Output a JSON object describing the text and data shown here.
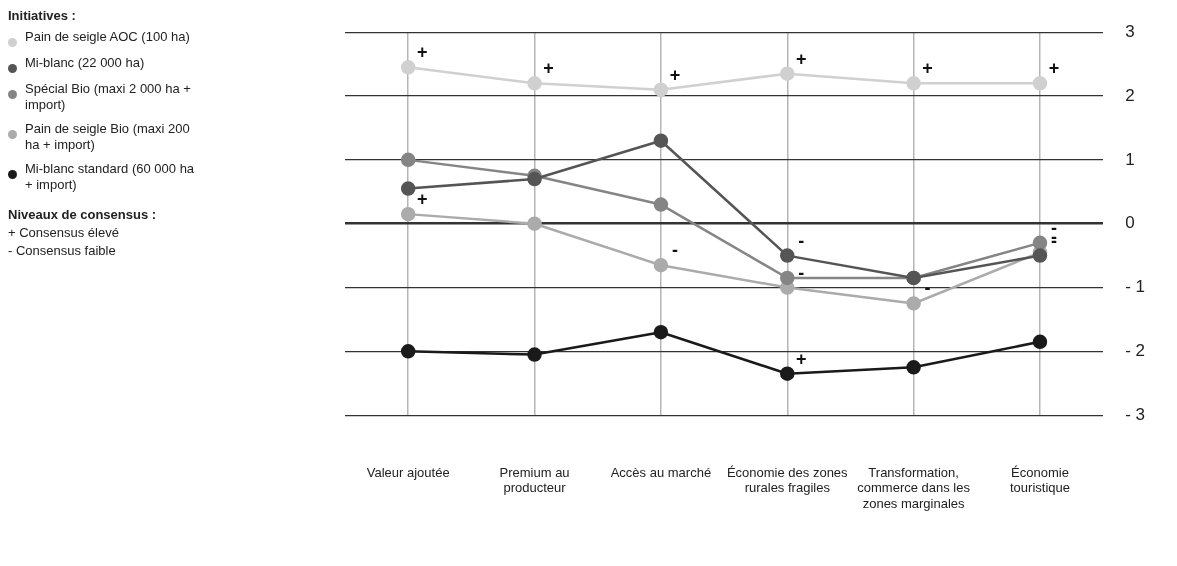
{
  "chart_data": {
    "type": "line",
    "legend_title": "Initiatives :",
    "categories": [
      "Valeur ajoutée",
      "Premium au producteur",
      "Accès au marché",
      "Économie des zones rurales fragiles",
      "Transformation, commerce dans les zones marginales",
      "Économie touristique"
    ],
    "series": [
      {
        "name": "Pain de seigle AOC (100 ha)",
        "color": "#d0d0d0",
        "values": [
          2.45,
          2.2,
          2.1,
          2.35,
          2.2,
          2.2
        ]
      },
      {
        "name": "Mi-blanc (22 000 ha)",
        "color": "#555555",
        "values": [
          0.55,
          0.7,
          1.3,
          -0.5,
          -0.85,
          -0.5
        ]
      },
      {
        "name": "Spécial Bio (maxi 2 000 ha + import)",
        "color": "#858585",
        "values": [
          1.0,
          0.75,
          0.3,
          -0.85,
          -0.85,
          -0.3
        ]
      },
      {
        "name": "Pain de seigle Bio (maxi 200 ha + import)",
        "color": "#ababab",
        "values": [
          0.15,
          0.0,
          -0.65,
          -1.0,
          -1.25,
          -0.45
        ]
      },
      {
        "name": "Mi-blanc standard (60 000 ha + import)",
        "color": "#1a1a1a",
        "values": [
          -2.0,
          -2.05,
          -1.7,
          -2.35,
          -2.25,
          -1.85
        ]
      }
    ],
    "ylim": [
      -3,
      3
    ],
    "yticks": [
      {
        "value": -3,
        "label": "- 3"
      },
      {
        "value": -2,
        "label": "- 2"
      },
      {
        "value": -1,
        "label": "- 1"
      },
      0,
      1,
      2,
      3
    ],
    "grid": true,
    "legend": "left",
    "marker": "circle",
    "line_style": "solid",
    "annotations": [
      "Niveaux de consensus :",
      "+ Consensus élevé",
      "- Consensus faible",
      {
        "text": "+",
        "x": "Valeur ajoutée",
        "y": 2.45
      },
      {
        "text": "+",
        "x": "Premium au producteur",
        "y": 2.2
      },
      {
        "text": "+",
        "x": "Accès au marché",
        "y": 2.1
      },
      {
        "text": "+",
        "x": "Économie des zones rurales fragiles",
        "y": 2.35
      },
      {
        "text": "+",
        "x": "Transformation, commerce dans les zones marginales",
        "y": 2.2
      },
      {
        "text": "+",
        "x": "Économie touristique",
        "y": 2.2
      },
      {
        "text": "+",
        "x": "Valeur ajoutée",
        "y": 0.15
      },
      {
        "text": "-",
        "x": "Accès au marché",
        "y": -0.65
      },
      {
        "text": "-",
        "x": "Économie des zones rurales fragiles",
        "y": -0.5
      },
      {
        "text": "-",
        "x": "Économie des zones rurales fragiles",
        "y": -1.0
      },
      {
        "text": "-",
        "x": "Transformation, commerce dans les zones marginales",
        "y": -1.25
      },
      {
        "text": "-",
        "x": "Économie touristique",
        "y": -0.3
      },
      {
        "text": "-",
        "x": "Économie touristique",
        "y": -0.45
      },
      {
        "text": "-",
        "x": "Économie touristique",
        "y": -0.5
      },
      {
        "text": "+",
        "x": "Économie des zones rurales fragiles",
        "y": -2.35
      }
    ]
  }
}
